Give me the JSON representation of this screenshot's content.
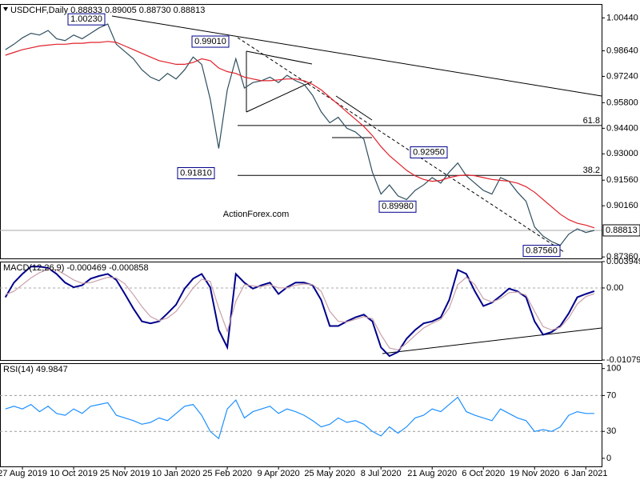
{
  "chart_data": [
    {
      "type": "line",
      "title": "USDCHF,Daily 0.88833 0.89005 0.88730 0.88813",
      "watermark": "ActionForex.com",
      "categories": [
        null,
        null,
        "27 Aug 2019",
        null,
        null,
        null,
        null,
        null,
        "10 Oct 2019",
        null,
        null,
        null,
        null,
        null,
        "25 Nov 2019",
        null,
        null,
        null,
        null,
        null,
        "10 Jan 2020",
        null,
        null,
        null,
        null,
        null,
        "25 Feb 2020",
        null,
        null,
        null,
        null,
        null,
        "9 Apr 2020",
        null,
        null,
        null,
        null,
        null,
        "25 May 2020",
        null,
        null,
        null,
        null,
        null,
        "8 Jul 2020",
        null,
        null,
        null,
        null,
        null,
        "21 Aug 2020",
        null,
        null,
        null,
        null,
        null,
        "6 Oct 2020",
        null,
        null,
        null,
        null,
        null,
        "19 Nov 2020",
        null,
        null,
        null,
        null,
        null,
        "6 Jan 2021",
        null
      ],
      "series": [
        {
          "color": "#2f4f5f",
          "values": [
            0.987,
            0.99,
            0.9935,
            0.996,
            0.995,
            0.9975,
            0.993,
            0.992,
            0.995,
            0.993,
            0.996,
            0.999,
            1.001,
            0.99,
            0.986,
            0.982,
            0.976,
            0.972,
            0.97,
            0.974,
            0.971,
            0.976,
            0.983,
            0.979,
            0.96,
            0.933,
            0.965,
            0.982,
            0.966,
            0.969,
            0.97,
            0.972,
            0.969,
            0.973,
            0.97,
            0.968,
            0.962,
            0.953,
            0.947,
            0.95,
            0.944,
            0.942,
            0.938,
            0.92,
            0.908,
            0.913,
            0.907,
            0.905,
            0.91,
            0.913,
            0.917,
            0.914,
            0.92,
            0.925,
            0.918,
            0.914,
            0.91,
            0.908,
            0.917,
            0.915,
            0.909,
            0.904,
            0.89,
            0.885,
            0.882,
            0.88,
            0.886,
            0.889,
            0.887,
            0.88813
          ]
        },
        {
          "color": "#e0202a",
          "values": [
            0.984,
            0.9855,
            0.987,
            0.988,
            0.989,
            0.9895,
            0.99,
            0.99,
            0.9905,
            0.9905,
            0.991,
            0.991,
            0.9915,
            0.991,
            0.989,
            0.987,
            0.985,
            0.983,
            0.981,
            0.98,
            0.979,
            0.979,
            0.98,
            0.982,
            0.981,
            0.977,
            0.975,
            0.974,
            0.972,
            0.971,
            0.97,
            0.97,
            0.9705,
            0.971,
            0.971,
            0.97,
            0.968,
            0.965,
            0.961,
            0.957,
            0.953,
            0.949,
            0.945,
            0.94,
            0.934,
            0.929,
            0.925,
            0.921,
            0.918,
            0.916,
            0.915,
            0.9155,
            0.917,
            0.918,
            0.9185,
            0.918,
            0.917,
            0.916,
            0.9155,
            0.915,
            0.914,
            0.912,
            0.909,
            0.905,
            0.901,
            0.897,
            0.894,
            0.892,
            0.891,
            0.8895
          ]
        }
      ],
      "ylim": [
        0.8728,
        1.012
      ],
      "yticks": [
        {
          "value": 1.0044,
          "label": "1.00440"
        },
        {
          "value": 0.9864,
          "label": "0.98640"
        },
        {
          "value": 0.9724,
          "label": "0.97240"
        },
        {
          "value": 0.958,
          "label": "0.95800"
        },
        {
          "value": 0.944,
          "label": "0.94400"
        },
        {
          "value": 0.93,
          "label": "0.93000"
        },
        {
          "value": 0.9156,
          "label": "0.91560"
        },
        {
          "value": 0.9016,
          "label": "0.90160"
        },
        {
          "value": 0.8736,
          "label": "0.87360"
        }
      ],
      "last_price": {
        "value": 0.88813,
        "label": "0.88813"
      },
      "annotations": [
        {
          "value": 1.0023,
          "label": "1.00230"
        },
        {
          "value": 0.9901,
          "label": "0.99010"
        },
        {
          "value": 0.9181,
          "label": "0.91810"
        },
        {
          "value": 0.8998,
          "label": "0.89980"
        },
        {
          "value": 0.9295,
          "label": "0.92950"
        },
        {
          "value": 0.8756,
          "label": "0.87560"
        }
      ],
      "fib_levels": [
        {
          "value": 61.8,
          "price": 0.9455
        },
        {
          "value": 38.2,
          "price": 0.9182
        }
      ]
    },
    {
      "type": "line",
      "title": "MACD(12,26,9) -0.000469 -0.000858",
      "series": [
        {
          "color": "#00008b",
          "values": [
            -0.0014,
            0.0008,
            0.0021,
            0.0032,
            0.0032,
            0.003,
            0.0021,
            0.0008,
            0.0001,
            0.0004,
            0.0014,
            0.0018,
            0.0021,
            0.0012,
            -0.0009,
            -0.0031,
            -0.005,
            -0.0053,
            -0.005,
            -0.0038,
            -0.0025,
            -0.0001,
            0.0014,
            0.0021,
            0.0001,
            -0.0063,
            -0.0089,
            0.0021,
            0.0008,
            -0.0001,
            0.0004,
            0.0008,
            -0.0009,
            0.0001,
            0.0008,
            0.0008,
            0.0004,
            -0.0018,
            -0.0057,
            -0.0057,
            -0.005,
            -0.0044,
            -0.004,
            -0.005,
            -0.0089,
            -0.0102,
            -0.0096,
            -0.0076,
            -0.0063,
            -0.0053,
            -0.005,
            -0.0044,
            -0.0018,
            0.0027,
            0.0021,
            -0.0005,
            -0.0027,
            -0.0022,
            -0.0012,
            -0.0001,
            -0.0005,
            -0.0014,
            -0.005,
            -0.007,
            -0.0066,
            -0.0057,
            -0.0038,
            -0.0014,
            -0.0009,
            -0.000469
          ]
        },
        {
          "color": "#c8a0a8",
          "values": [
            -0.001,
            -0.0005,
            0.0005,
            0.0015,
            0.0023,
            0.0028,
            0.0027,
            0.002,
            0.0012,
            0.0007,
            0.0008,
            0.0012,
            0.0016,
            0.0015,
            0.0006,
            -0.001,
            -0.0028,
            -0.0043,
            -0.0049,
            -0.0045,
            -0.0035,
            -0.0018,
            0.0,
            0.0013,
            0.001,
            -0.003,
            -0.0065,
            -0.002,
            0.0005,
            0.0003,
            0.0002,
            0.0005,
            0.0,
            0.0,
            0.0004,
            0.0006,
            0.0005,
            -0.0005,
            -0.0035,
            -0.005,
            -0.0051,
            -0.0047,
            -0.0043,
            -0.0046,
            -0.007,
            -0.009,
            -0.0093,
            -0.0083,
            -0.0071,
            -0.006,
            -0.0053,
            -0.0047,
            -0.003,
            0.0005,
            0.0016,
            0.0005,
            -0.0016,
            -0.0021,
            -0.0016,
            -0.0007,
            -0.0006,
            -0.0011,
            -0.0035,
            -0.0058,
            -0.0063,
            -0.0059,
            -0.0045,
            -0.0024,
            -0.0013,
            -0.000858
          ]
        }
      ],
      "ylim": [
        -0.010793,
        0.003949
      ],
      "yticks": [
        0.003949,
        {
          "value": 0,
          "label": "0.00"
        },
        -0.010793
      ]
    },
    {
      "type": "line",
      "title": "RSI(14) 49.9847",
      "series": [
        {
          "color": "#1e90ff",
          "values": [
            55,
            58,
            55,
            60,
            52,
            58,
            50,
            48,
            55,
            50,
            58,
            60,
            62,
            48,
            45,
            42,
            38,
            40,
            45,
            42,
            50,
            58,
            60,
            48,
            30,
            22,
            55,
            65,
            45,
            52,
            55,
            58,
            50,
            55,
            52,
            48,
            42,
            35,
            38,
            45,
            40,
            42,
            38,
            30,
            25,
            35,
            28,
            35,
            45,
            48,
            55,
            52,
            60,
            68,
            52,
            48,
            45,
            42,
            55,
            50,
            45,
            42,
            30,
            32,
            30,
            35,
            48,
            52,
            50,
            49.9847
          ]
        }
      ],
      "ylim": [
        -9,
        106
      ],
      "yticks": [
        0,
        30,
        70,
        100
      ],
      "levels": [
        30,
        70
      ]
    }
  ]
}
